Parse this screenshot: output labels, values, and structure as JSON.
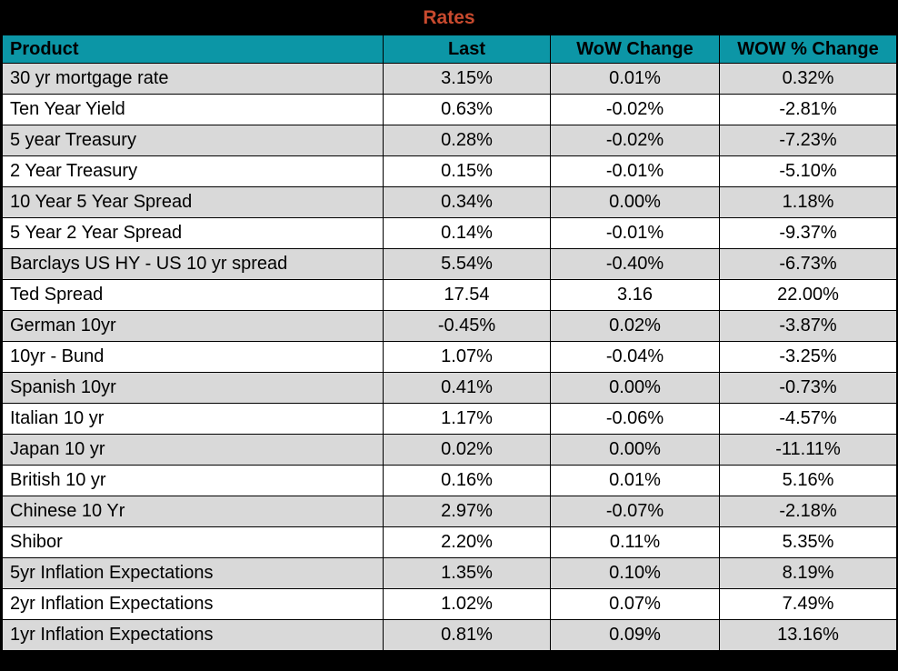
{
  "title": "Rates",
  "colors": {
    "title_text": "#c84a2e",
    "header_bg": "#0c96a6",
    "row_alt_bg": "#d9d9d9",
    "row_bg": "#ffffff",
    "border": "#000000",
    "title_band_bg": "#000000"
  },
  "chart_data": {
    "type": "table",
    "title": "Rates",
    "columns": [
      "Product",
      "Last",
      "WoW Change",
      "WOW % Change"
    ],
    "rows": [
      [
        "30 yr mortgage rate",
        "3.15%",
        "0.01%",
        "0.32%"
      ],
      [
        "Ten Year Yield",
        "0.63%",
        "-0.02%",
        "-2.81%"
      ],
      [
        "5 year Treasury",
        "0.28%",
        "-0.02%",
        "-7.23%"
      ],
      [
        "2 Year Treasury",
        "0.15%",
        "-0.01%",
        "-5.10%"
      ],
      [
        "10 Year 5 Year Spread",
        "0.34%",
        "0.00%",
        "1.18%"
      ],
      [
        "5 Year 2 Year Spread",
        "0.14%",
        "-0.01%",
        "-9.37%"
      ],
      [
        "Barclays US HY - US 10 yr spread",
        "5.54%",
        "-0.40%",
        "-6.73%"
      ],
      [
        "Ted Spread",
        "17.54",
        "3.16",
        "22.00%"
      ],
      [
        "German 10yr",
        "-0.45%",
        "0.02%",
        "-3.87%"
      ],
      [
        "10yr - Bund",
        "1.07%",
        "-0.04%",
        "-3.25%"
      ],
      [
        "Spanish 10yr",
        "0.41%",
        "0.00%",
        "-0.73%"
      ],
      [
        "Italian 10 yr",
        "1.17%",
        "-0.06%",
        "-4.57%"
      ],
      [
        "Japan 10 yr",
        "0.02%",
        "0.00%",
        "-11.11%"
      ],
      [
        "British 10 yr",
        "0.16%",
        "0.01%",
        "5.16%"
      ],
      [
        "Chinese 10 Yr",
        "2.97%",
        "-0.07%",
        "-2.18%"
      ],
      [
        "Shibor",
        "2.20%",
        "0.11%",
        "5.35%"
      ],
      [
        "5yr Inflation Expectations",
        "1.35%",
        "0.10%",
        "8.19%"
      ],
      [
        "2yr Inflation Expectations",
        "1.02%",
        "0.07%",
        "7.49%"
      ],
      [
        "1yr Inflation Expectations",
        "0.81%",
        "0.09%",
        "13.16%"
      ]
    ],
    "layout": {
      "striped": true,
      "first_row_shaded": true,
      "product_column_align": "left",
      "value_columns_align": "center",
      "legend_position": "none",
      "grid": true
    }
  }
}
